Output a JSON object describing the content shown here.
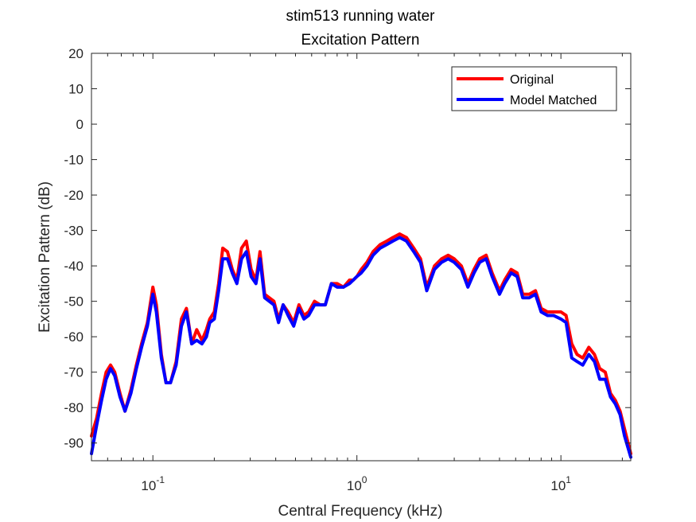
{
  "chart_data": {
    "type": "line",
    "title": "stim513 running water",
    "subtitle": "Excitation Pattern",
    "xlabel": "Central Frequency (kHz)",
    "ylabel": "Excitation Pattern (dB)",
    "xscale": "log",
    "xlim": [
      0.05,
      22
    ],
    "ylim": [
      -95,
      20
    ],
    "yticks": [
      20,
      10,
      0,
      -10,
      -20,
      -30,
      -40,
      -50,
      -60,
      -70,
      -80,
      -90
    ],
    "xticks": [
      {
        "base": "10",
        "exp": "-1",
        "value": 0.1
      },
      {
        "base": "10",
        "exp": "0",
        "value": 1
      },
      {
        "base": "10",
        "exp": "1",
        "value": 10
      }
    ],
    "grid": false,
    "legend_position": "top-right",
    "series": [
      {
        "name": "Original",
        "color": "#ff0000",
        "x": [
          0.05,
          0.053,
          0.056,
          0.059,
          0.062,
          0.065,
          0.069,
          0.073,
          0.078,
          0.083,
          0.088,
          0.094,
          0.1,
          0.104,
          0.11,
          0.116,
          0.122,
          0.13,
          0.138,
          0.146,
          0.155,
          0.164,
          0.174,
          0.183,
          0.19,
          0.2,
          0.21,
          0.22,
          0.232,
          0.245,
          0.258,
          0.272,
          0.287,
          0.303,
          0.32,
          0.335,
          0.353,
          0.372,
          0.392,
          0.413,
          0.435,
          0.46,
          0.49,
          0.52,
          0.55,
          0.58,
          0.62,
          0.66,
          0.7,
          0.75,
          0.8,
          0.86,
          0.92,
          0.96,
          1.0,
          1.05,
          1.12,
          1.2,
          1.3,
          1.4,
          1.5,
          1.62,
          1.75,
          1.9,
          2.05,
          2.2,
          2.4,
          2.6,
          2.8,
          3.0,
          3.25,
          3.5,
          3.75,
          4.0,
          4.3,
          4.6,
          5.0,
          5.3,
          5.7,
          6.1,
          6.5,
          7.0,
          7.5,
          8.0,
          8.6,
          9.2,
          10.0,
          10.6,
          11.3,
          12.0,
          12.8,
          13.7,
          14.6,
          15.5,
          16.5,
          17.5,
          18.5,
          19.5,
          20.5,
          22.0
        ],
        "values": [
          -88,
          -83,
          -76,
          -70,
          -68,
          -70,
          -76,
          -81,
          -75,
          -68,
          -62,
          -56,
          -46,
          -51,
          -65,
          -73,
          -73,
          -67,
          -55,
          -52,
          -62,
          -58,
          -61,
          -58,
          -55,
          -53,
          -45,
          -35,
          -36,
          -41,
          -44,
          -35,
          -33,
          -41,
          -44,
          -36,
          -48,
          -49,
          -50,
          -55,
          -51,
          -53,
          -56,
          -51,
          -54,
          -53,
          -50,
          -51,
          -51,
          -45,
          -45,
          -46,
          -44,
          -44,
          -43,
          -41,
          -39,
          -36,
          -34,
          -33,
          -32,
          -31,
          -32,
          -35,
          -38,
          -46,
          -40,
          -38,
          -37,
          -38,
          -40,
          -45,
          -41,
          -38,
          -37,
          -42,
          -47,
          -44,
          -41,
          -42,
          -48,
          -48,
          -47,
          -52,
          -53,
          -53,
          -53,
          -54,
          -62,
          -65,
          -66,
          -63,
          -65,
          -69,
          -70,
          -76,
          -78,
          -81,
          -86,
          -93
        ]
      },
      {
        "name": "Model Matched",
        "color": "#0000ff",
        "x": [
          0.05,
          0.053,
          0.056,
          0.059,
          0.062,
          0.065,
          0.069,
          0.073,
          0.078,
          0.083,
          0.088,
          0.094,
          0.1,
          0.104,
          0.11,
          0.116,
          0.122,
          0.13,
          0.138,
          0.146,
          0.155,
          0.164,
          0.174,
          0.183,
          0.19,
          0.2,
          0.21,
          0.22,
          0.232,
          0.245,
          0.258,
          0.272,
          0.287,
          0.303,
          0.32,
          0.335,
          0.353,
          0.372,
          0.392,
          0.413,
          0.435,
          0.46,
          0.49,
          0.52,
          0.55,
          0.58,
          0.62,
          0.66,
          0.7,
          0.75,
          0.8,
          0.86,
          0.92,
          0.96,
          1.0,
          1.05,
          1.12,
          1.2,
          1.3,
          1.4,
          1.5,
          1.62,
          1.75,
          1.9,
          2.05,
          2.2,
          2.4,
          2.6,
          2.8,
          3.0,
          3.25,
          3.5,
          3.75,
          4.0,
          4.3,
          4.6,
          5.0,
          5.3,
          5.7,
          6.1,
          6.5,
          7.0,
          7.5,
          8.0,
          8.6,
          9.2,
          10.0,
          10.6,
          11.3,
          12.0,
          12.8,
          13.7,
          14.6,
          15.5,
          16.5,
          17.5,
          18.5,
          19.5,
          20.5,
          22.0
        ],
        "values": [
          -93,
          -85,
          -78,
          -72,
          -69,
          -71,
          -77,
          -81,
          -76,
          -69,
          -63,
          -57,
          -48,
          -53,
          -66,
          -73,
          -73,
          -68,
          -57,
          -53,
          -62,
          -61,
          -62,
          -60,
          -56,
          -55,
          -47,
          -38,
          -38,
          -42,
          -45,
          -38,
          -36,
          -43,
          -45,
          -38,
          -49,
          -50,
          -51,
          -56,
          -51,
          -54,
          -57,
          -52,
          -55,
          -54,
          -51,
          -51,
          -51,
          -45,
          -46,
          -46,
          -45,
          -44,
          -43,
          -42,
          -40,
          -37,
          -35,
          -34,
          -33,
          -32,
          -33,
          -36,
          -39,
          -47,
          -41,
          -39,
          -38,
          -39,
          -41,
          -46,
          -42,
          -39,
          -38,
          -43,
          -48,
          -45,
          -42,
          -43,
          -49,
          -49,
          -48,
          -53,
          -54,
          -54,
          -55,
          -56,
          -66,
          -67,
          -68,
          -65,
          -67,
          -72,
          -72,
          -77,
          -79,
          -82,
          -88,
          -94
        ]
      }
    ]
  }
}
